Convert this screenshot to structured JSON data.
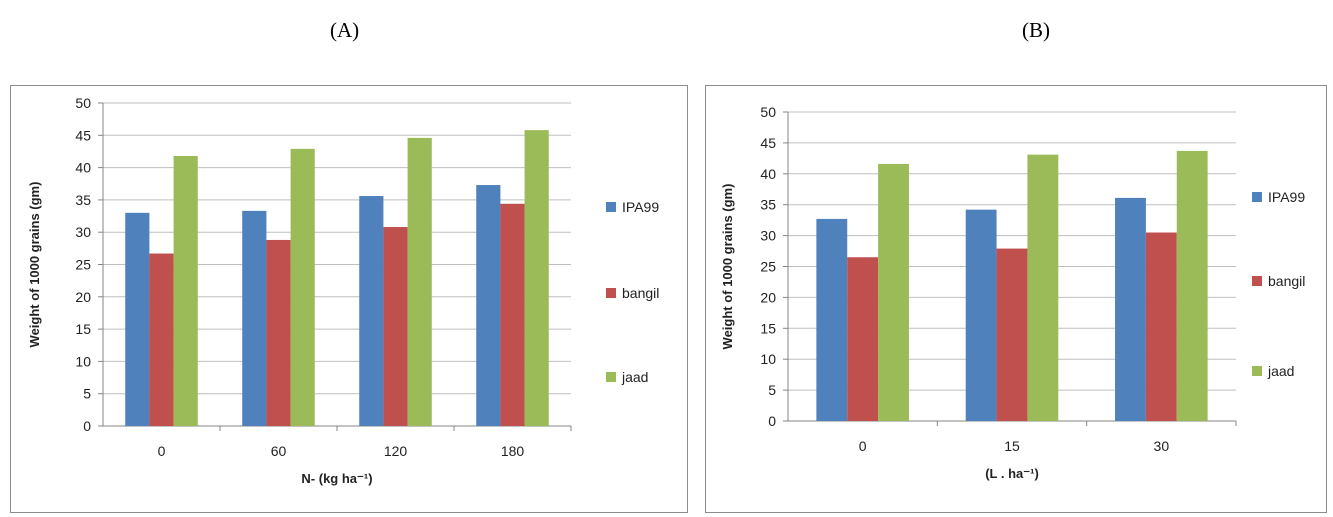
{
  "panels": [
    {
      "label": "(A)"
    },
    {
      "label": "(B)"
    }
  ],
  "chart_data": [
    {
      "type": "bar",
      "categories": [
        "0",
        "60",
        "120",
        "180"
      ],
      "series": [
        {
          "name": "IPA99",
          "color": "#4f81bd",
          "values": [
            33.0,
            33.3,
            35.6,
            37.3
          ]
        },
        {
          "name": "bangil",
          "color": "#c0504d",
          "values": [
            26.7,
            28.8,
            30.8,
            34.4
          ]
        },
        {
          "name": "jaad",
          "color": "#9bbb59",
          "values": [
            41.8,
            42.9,
            44.6,
            45.8
          ]
        }
      ],
      "title": "",
      "xlabel": "N- (kg ha⁻¹)",
      "ylabel": "Weight of 1000  grains (gm)",
      "ylim": [
        0,
        50
      ],
      "yticks": [
        "0",
        "5",
        "10",
        "15",
        "20",
        "25",
        "30",
        "35",
        "40",
        "45",
        "50"
      ],
      "grid": true,
      "legend": "right"
    },
    {
      "type": "bar",
      "categories": [
        "0",
        "15",
        "30"
      ],
      "series": [
        {
          "name": "IPA99",
          "color": "#4f81bd",
          "values": [
            32.7,
            34.2,
            36.1
          ]
        },
        {
          "name": "bangil",
          "color": "#c0504d",
          "values": [
            26.5,
            27.9,
            30.5
          ]
        },
        {
          "name": "jaad",
          "color": "#9bbb59",
          "values": [
            41.6,
            43.1,
            43.7
          ]
        }
      ],
      "title": "",
      "xlabel": "(L . ha⁻¹)",
      "ylabel": "Weight of 1000 grains (gm)",
      "ylim": [
        0,
        50
      ],
      "yticks": [
        "0",
        "5",
        "10",
        "15",
        "20",
        "25",
        "30",
        "35",
        "40",
        "45",
        "50"
      ],
      "grid": true,
      "legend": "right"
    }
  ]
}
